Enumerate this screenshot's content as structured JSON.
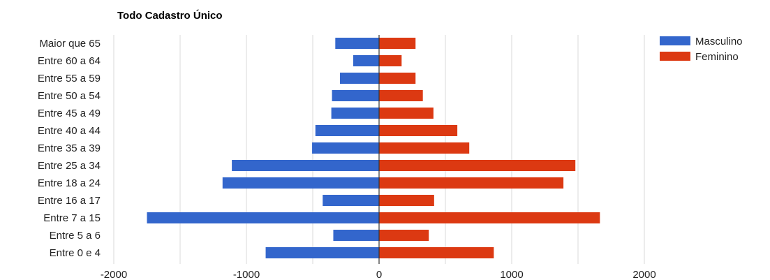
{
  "chart_data": {
    "type": "bar",
    "orientation": "horizontal",
    "title": "Todo Cadastro Único",
    "categories": [
      "Maior que 65",
      "Entre 60 a 64",
      "Entre 55 a 59",
      "Entre 50 a 54",
      "Entre 45 a 49",
      "Entre 40 a 44",
      "Entre 35 a 39",
      "Entre 25 a 34",
      "Entre 18 a 24",
      "Entre 16 a 17",
      "Entre 7 a 15",
      "Entre 5 a 6",
      "Entre 0 e 4"
    ],
    "series": [
      {
        "name": "Masculino",
        "color": "#3366cc",
        "values": [
          -330,
          -195,
          -295,
          -355,
          -360,
          -480,
          -505,
          -1110,
          -1180,
          -425,
          -1750,
          -345,
          -855
        ]
      },
      {
        "name": "Feminino",
        "color": "#dc3912",
        "values": [
          275,
          170,
          275,
          330,
          410,
          590,
          680,
          1480,
          1390,
          415,
          1665,
          375,
          865
        ]
      }
    ],
    "xticks": [
      "-2000",
      "-1000",
      "0",
      "1000",
      "2000"
    ],
    "xlim": [
      -2000,
      2000
    ],
    "grid": true,
    "legend": "top-right"
  }
}
